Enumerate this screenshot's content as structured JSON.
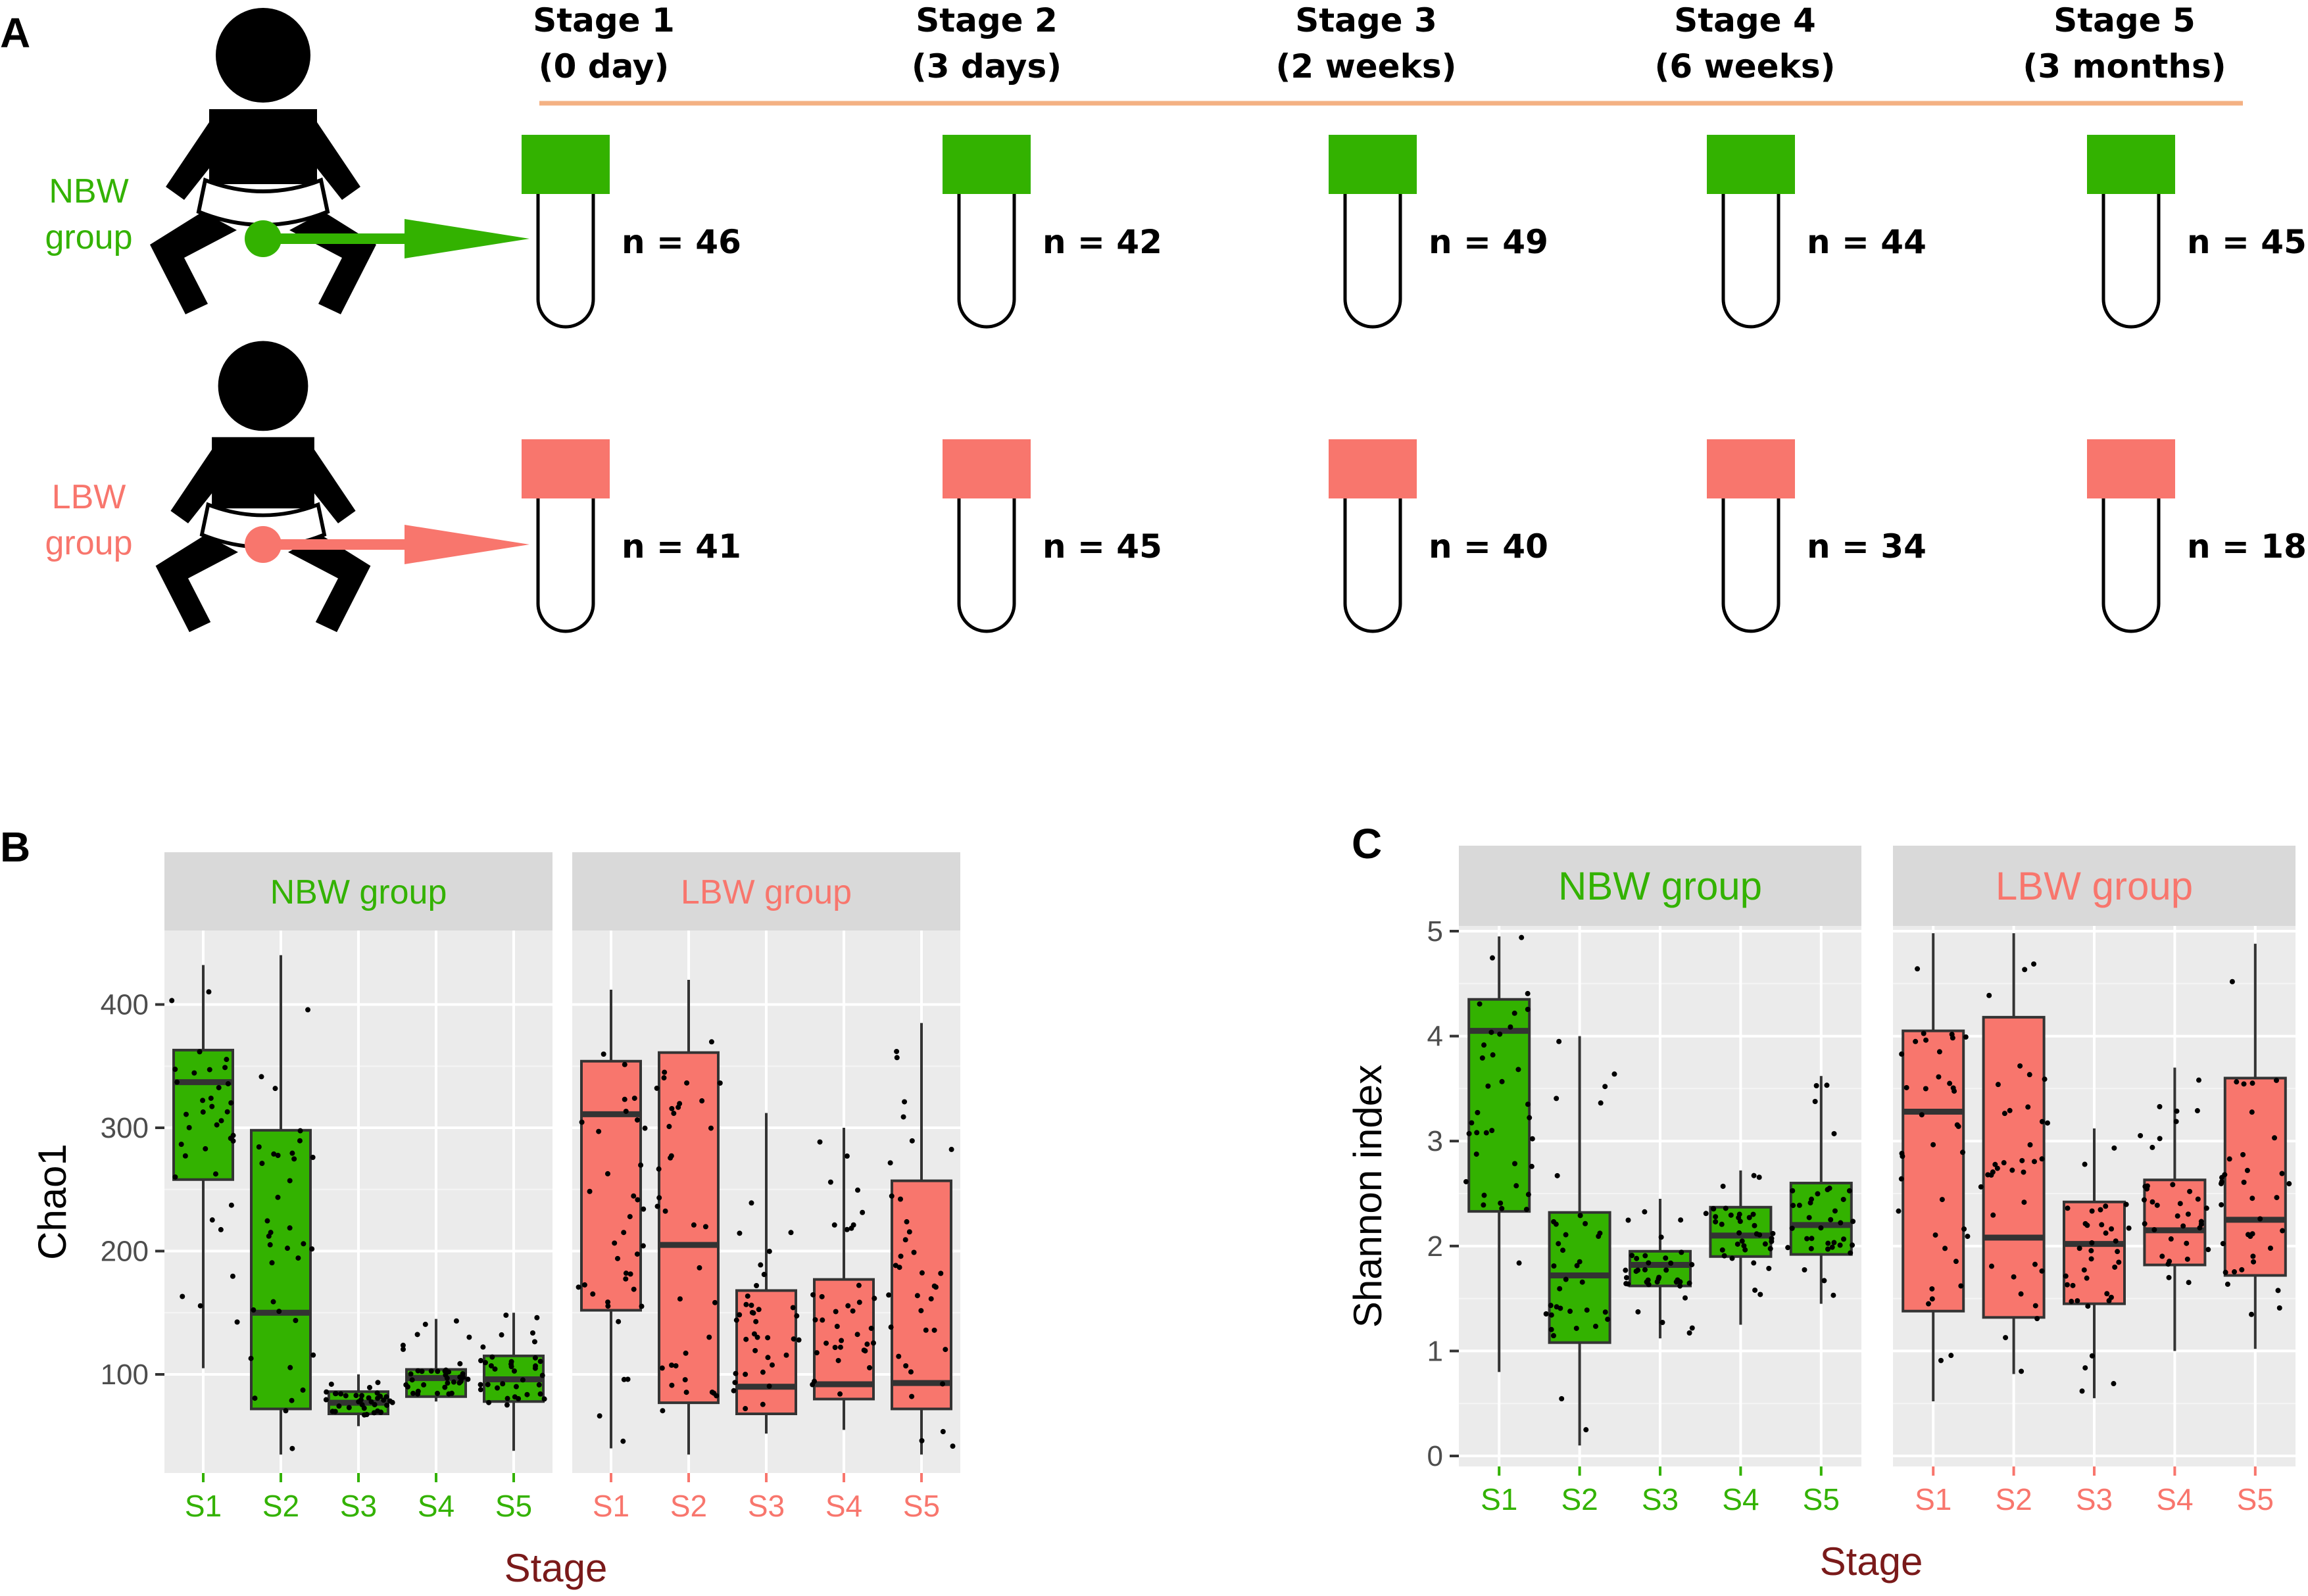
{
  "panel_a": {
    "letter": "A",
    "stages": [
      {
        "line1": "Stage 1",
        "line2": "(0 day)"
      },
      {
        "line1": "Stage 2",
        "line2": "(3 days)"
      },
      {
        "line1": "Stage 3",
        "line2": "(2 weeks)"
      },
      {
        "line1": "Stage 4",
        "line2": "(6 weeks)"
      },
      {
        "line1": "Stage 5",
        "line2": "(3 months)"
      }
    ],
    "groups": [
      {
        "label_line1": "NBW",
        "label_line2": "group",
        "color": "#33b200",
        "counts": [
          "n = 46",
          "n = 42",
          "n = 49",
          "n = 44",
          "n = 45"
        ]
      },
      {
        "label_line1": "LBW",
        "label_line2": "group",
        "color": "#f8766d",
        "counts": [
          "n = 41",
          "n = 45",
          "n = 40",
          "n = 34",
          "n = 18"
        ]
      }
    ],
    "timeline_color": "#f4b183"
  },
  "colors": {
    "nbw": "#33b200",
    "lbw": "#f8766d",
    "panel_bg": "#ebebeb",
    "strip_bg": "#d9d9d9",
    "axis_title": "#7a1a1a"
  },
  "chart_data": [
    {
      "type": "boxplot",
      "panel": "B",
      "ylabel": "Chao1",
      "xlabel": "Stage",
      "ylim": [
        20,
        460
      ],
      "yticks": [
        100,
        200,
        300,
        400
      ],
      "categories": [
        "S1",
        "S2",
        "S3",
        "S4",
        "S5"
      ],
      "facets": [
        {
          "name": "NBW group",
          "color": "#33b200",
          "boxes": [
            {
              "min": 105,
              "q1": 258,
              "median": 337,
              "q3": 363,
              "max": 432
            },
            {
              "min": 35,
              "q1": 72,
              "median": 150,
              "q3": 298,
              "max": 440
            },
            {
              "min": 58,
              "q1": 68,
              "median": 77,
              "q3": 86,
              "max": 100
            },
            {
              "min": 78,
              "q1": 82,
              "median": 97,
              "q3": 104,
              "max": 145
            },
            {
              "min": 38,
              "q1": 78,
              "median": 96,
              "q3": 115,
              "max": 150
            }
          ]
        },
        {
          "name": "LBW group",
          "color": "#f8766d",
          "boxes": [
            {
              "min": 40,
              "q1": 152,
              "median": 311,
              "q3": 354,
              "max": 412
            },
            {
              "min": 35,
              "q1": 77,
              "median": 205,
              "q3": 361,
              "max": 420
            },
            {
              "min": 52,
              "q1": 68,
              "median": 90,
              "q3": 168,
              "max": 312
            },
            {
              "min": 55,
              "q1": 80,
              "median": 92,
              "q3": 177,
              "max": 300
            },
            {
              "min": 35,
              "q1": 72,
              "median": 93,
              "q3": 257,
              "max": 385
            }
          ]
        }
      ]
    },
    {
      "type": "boxplot",
      "panel": "C",
      "ylabel": "Shannon index",
      "xlabel": "Stage",
      "ylim": [
        -0.1,
        5.05
      ],
      "yticks": [
        0,
        1,
        2,
        3,
        4,
        5
      ],
      "categories": [
        "S1",
        "S2",
        "S3",
        "S4",
        "S5"
      ],
      "facets": [
        {
          "name": "NBW group",
          "color": "#33b200",
          "boxes": [
            {
              "min": 0.8,
              "q1": 2.33,
              "median": 4.05,
              "q3": 4.35,
              "max": 4.95
            },
            {
              "min": 0.1,
              "q1": 1.08,
              "median": 1.72,
              "q3": 2.32,
              "max": 4.0
            },
            {
              "min": 1.12,
              "q1": 1.62,
              "median": 1.82,
              "q3": 1.95,
              "max": 2.45
            },
            {
              "min": 1.25,
              "q1": 1.9,
              "median": 2.1,
              "q3": 2.37,
              "max": 2.72
            },
            {
              "min": 1.45,
              "q1": 1.92,
              "median": 2.2,
              "q3": 2.6,
              "max": 3.62
            }
          ]
        },
        {
          "name": "LBW group",
          "color": "#f8766d",
          "boxes": [
            {
              "min": 0.52,
              "q1": 1.38,
              "median": 3.28,
              "q3": 4.05,
              "max": 4.98
            },
            {
              "min": 0.78,
              "q1": 1.32,
              "median": 2.08,
              "q3": 4.18,
              "max": 4.98
            },
            {
              "min": 0.55,
              "q1": 1.45,
              "median": 2.02,
              "q3": 2.42,
              "max": 3.12
            },
            {
              "min": 1.0,
              "q1": 1.82,
              "median": 2.15,
              "q3": 2.63,
              "max": 3.7
            },
            {
              "min": 1.02,
              "q1": 1.72,
              "median": 2.25,
              "q3": 3.6,
              "max": 4.88
            }
          ]
        }
      ]
    }
  ]
}
